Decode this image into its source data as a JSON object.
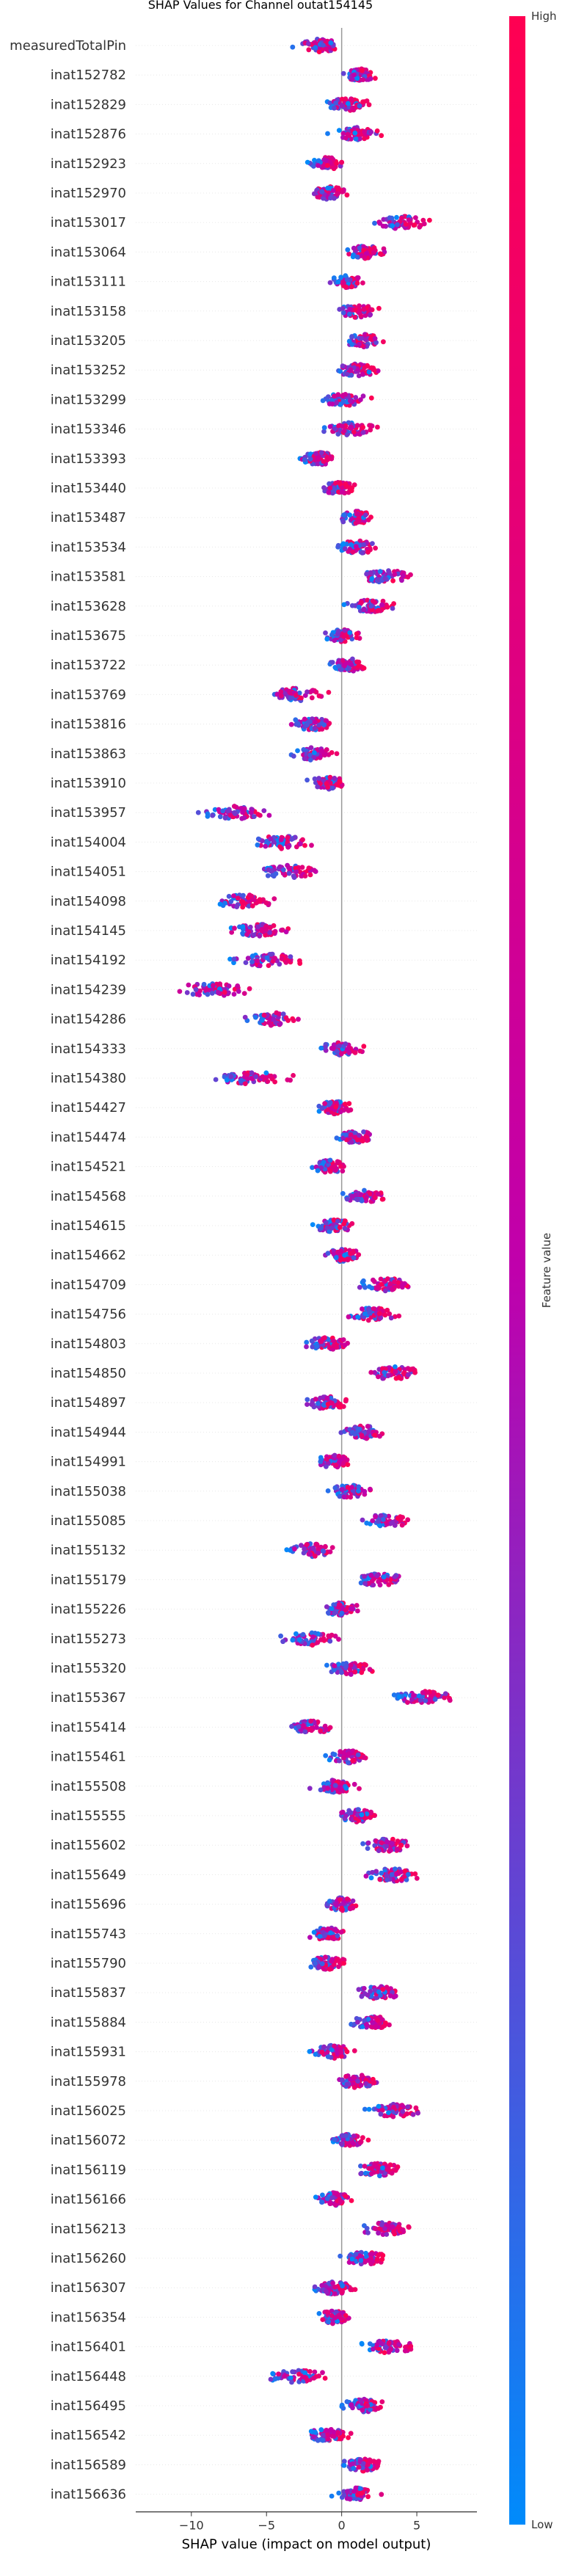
{
  "chart_data": {
    "type": "scatter",
    "title": "SHAP Values for Channel outat154145",
    "xlabel": "SHAP value (impact on model output)",
    "xlim": [
      -13.7,
      9.0
    ],
    "xticks": [
      -10,
      -5,
      0,
      5
    ],
    "colorbar": {
      "label": "Feature value",
      "high": "High",
      "low": "Low",
      "high_color": "#ff0052",
      "low_color": "#008bfb"
    },
    "features": [
      {
        "name": "measuredTotalPin",
        "center": -1.5,
        "spread": 2.2,
        "low_side": "left"
      },
      {
        "name": "inat152782",
        "center": 1.2,
        "spread": 1.5,
        "low_side": "left"
      },
      {
        "name": "inat152829",
        "center": 0.4,
        "spread": 2.0,
        "low_side": "left"
      },
      {
        "name": "inat152876",
        "center": 1.0,
        "spread": 2.2,
        "low_side": "left"
      },
      {
        "name": "inat152923",
        "center": -1.0,
        "spread": 1.6,
        "low_side": "left"
      },
      {
        "name": "inat152970",
        "center": -0.8,
        "spread": 1.8,
        "low_side": "left"
      },
      {
        "name": "inat153017",
        "center": 4.0,
        "spread": 2.6,
        "low_side": "left"
      },
      {
        "name": "inat153064",
        "center": 1.5,
        "spread": 2.0,
        "low_side": "left"
      },
      {
        "name": "inat153111",
        "center": 0.2,
        "spread": 1.6,
        "low_side": "left"
      },
      {
        "name": "inat153158",
        "center": 1.0,
        "spread": 1.8,
        "low_side": "left"
      },
      {
        "name": "inat153205",
        "center": 1.5,
        "spread": 1.8,
        "low_side": "left"
      },
      {
        "name": "inat153252",
        "center": 1.0,
        "spread": 2.0,
        "low_side": "left"
      },
      {
        "name": "inat153299",
        "center": 0.2,
        "spread": 2.0,
        "low_side": "left"
      },
      {
        "name": "inat153346",
        "center": 0.5,
        "spread": 2.2,
        "low_side": "left"
      },
      {
        "name": "inat153393",
        "center": -1.5,
        "spread": 1.8,
        "low_side": "left"
      },
      {
        "name": "inat153440",
        "center": -0.2,
        "spread": 1.6,
        "low_side": "left"
      },
      {
        "name": "inat153487",
        "center": 1.0,
        "spread": 1.8,
        "low_side": "left"
      },
      {
        "name": "inat153534",
        "center": 1.0,
        "spread": 2.2,
        "low_side": "left"
      },
      {
        "name": "inat153581",
        "center": 3.0,
        "spread": 2.4,
        "low_side": "left"
      },
      {
        "name": "inat153628",
        "center": 2.0,
        "spread": 2.2,
        "low_side": "left"
      },
      {
        "name": "inat153675",
        "center": 0.0,
        "spread": 1.6,
        "low_side": "left"
      },
      {
        "name": "inat153722",
        "center": 0.5,
        "spread": 1.8,
        "low_side": "left"
      },
      {
        "name": "inat153769",
        "center": -3.0,
        "spread": 2.4,
        "low_side": "left"
      },
      {
        "name": "inat153816",
        "center": -2.0,
        "spread": 2.2,
        "low_side": "left"
      },
      {
        "name": "inat153863",
        "center": -2.0,
        "spread": 1.8,
        "low_side": "left"
      },
      {
        "name": "inat153910",
        "center": -1.0,
        "spread": 1.8,
        "low_side": "left"
      },
      {
        "name": "inat153957",
        "center": -7.0,
        "spread": 3.3,
        "low_side": "left"
      },
      {
        "name": "inat154004",
        "center": -4.0,
        "spread": 2.8,
        "low_side": "left"
      },
      {
        "name": "inat154051",
        "center": -3.5,
        "spread": 2.8,
        "low_side": "left"
      },
      {
        "name": "inat154098",
        "center": -6.5,
        "spread": 3.6,
        "low_side": "left"
      },
      {
        "name": "inat154145",
        "center": -5.5,
        "spread": 3.0,
        "low_side": "left"
      },
      {
        "name": "inat154192",
        "center": -5.0,
        "spread": 3.2,
        "low_side": "left"
      },
      {
        "name": "inat154239",
        "center": -8.5,
        "spread": 4.2,
        "low_side": "left"
      },
      {
        "name": "inat154286",
        "center": -4.5,
        "spread": 2.6,
        "low_side": "left"
      },
      {
        "name": "inat154333",
        "center": 0.0,
        "spread": 2.0,
        "low_side": "left"
      },
      {
        "name": "inat154380",
        "center": -6.0,
        "spread": 3.2,
        "low_side": "left"
      },
      {
        "name": "inat154427",
        "center": -0.5,
        "spread": 1.8,
        "low_side": "left"
      },
      {
        "name": "inat154474",
        "center": 1.0,
        "spread": 1.8,
        "low_side": "left"
      },
      {
        "name": "inat154521",
        "center": -0.8,
        "spread": 1.8,
        "low_side": "left"
      },
      {
        "name": "inat154568",
        "center": 1.5,
        "spread": 2.0,
        "low_side": "left"
      },
      {
        "name": "inat154615",
        "center": -0.5,
        "spread": 1.8,
        "low_side": "left"
      },
      {
        "name": "inat154662",
        "center": 0.0,
        "spread": 1.8,
        "low_side": "left"
      },
      {
        "name": "inat154709",
        "center": 3.0,
        "spread": 2.6,
        "low_side": "left"
      },
      {
        "name": "inat154756",
        "center": 2.0,
        "spread": 2.2,
        "low_side": "left"
      },
      {
        "name": "inat154803",
        "center": -1.0,
        "spread": 2.0,
        "low_side": "left"
      },
      {
        "name": "inat154850",
        "center": 3.5,
        "spread": 2.6,
        "low_side": "left"
      },
      {
        "name": "inat154897",
        "center": -1.0,
        "spread": 2.0,
        "low_side": "left"
      },
      {
        "name": "inat154944",
        "center": 1.5,
        "spread": 2.0,
        "low_side": "left"
      },
      {
        "name": "inat154991",
        "center": -0.5,
        "spread": 2.0,
        "low_side": "left"
      },
      {
        "name": "inat155038",
        "center": 0.5,
        "spread": 2.0,
        "low_side": "left"
      },
      {
        "name": "inat155085",
        "center": 3.0,
        "spread": 2.2,
        "low_side": "left"
      },
      {
        "name": "inat155132",
        "center": -2.0,
        "spread": 2.2,
        "low_side": "left"
      },
      {
        "name": "inat155179",
        "center": 2.5,
        "spread": 2.2,
        "low_side": "left"
      },
      {
        "name": "inat155226",
        "center": 0.0,
        "spread": 1.8,
        "low_side": "left"
      },
      {
        "name": "inat155273",
        "center": -2.0,
        "spread": 2.6,
        "low_side": "left"
      },
      {
        "name": "inat155320",
        "center": 0.5,
        "spread": 2.2,
        "low_side": "left"
      },
      {
        "name": "inat155367",
        "center": 5.5,
        "spread": 2.8,
        "low_side": "left"
      },
      {
        "name": "inat155414",
        "center": -2.0,
        "spread": 2.2,
        "low_side": "left"
      },
      {
        "name": "inat155461",
        "center": 0.5,
        "spread": 1.8,
        "low_side": "left"
      },
      {
        "name": "inat155508",
        "center": -0.5,
        "spread": 2.0,
        "low_side": "left"
      },
      {
        "name": "inat155555",
        "center": 1.0,
        "spread": 1.8,
        "low_side": "left"
      },
      {
        "name": "inat155602",
        "center": 3.0,
        "spread": 2.4,
        "low_side": "left"
      },
      {
        "name": "inat155649",
        "center": 3.5,
        "spread": 2.8,
        "low_side": "left"
      },
      {
        "name": "inat155696",
        "center": 0.0,
        "spread": 1.8,
        "low_side": "left"
      },
      {
        "name": "inat155743",
        "center": -1.0,
        "spread": 1.8,
        "low_side": "left"
      },
      {
        "name": "inat155790",
        "center": -1.0,
        "spread": 1.8,
        "low_side": "left"
      },
      {
        "name": "inat155837",
        "center": 2.5,
        "spread": 2.2,
        "low_side": "left"
      },
      {
        "name": "inat155884",
        "center": 2.0,
        "spread": 2.2,
        "low_side": "left"
      },
      {
        "name": "inat155931",
        "center": -0.5,
        "spread": 2.2,
        "low_side": "left"
      },
      {
        "name": "inat155978",
        "center": 1.0,
        "spread": 2.2,
        "low_side": "left"
      },
      {
        "name": "inat156025",
        "center": 3.5,
        "spread": 2.4,
        "low_side": "left"
      },
      {
        "name": "inat156072",
        "center": 0.5,
        "spread": 1.8,
        "low_side": "left"
      },
      {
        "name": "inat156119",
        "center": 2.5,
        "spread": 2.2,
        "low_side": "left"
      },
      {
        "name": "inat156166",
        "center": -0.5,
        "spread": 1.8,
        "low_side": "left"
      },
      {
        "name": "inat156213",
        "center": 3.0,
        "spread": 2.2,
        "low_side": "left"
      },
      {
        "name": "inat156260",
        "center": 1.5,
        "spread": 2.0,
        "low_side": "left"
      },
      {
        "name": "inat156307",
        "center": -0.5,
        "spread": 2.0,
        "low_side": "left"
      },
      {
        "name": "inat156354",
        "center": -0.5,
        "spread": 1.8,
        "low_side": "left"
      },
      {
        "name": "inat156401",
        "center": 3.0,
        "spread": 2.4,
        "low_side": "left"
      },
      {
        "name": "inat156448",
        "center": -3.0,
        "spread": 2.8,
        "low_side": "left"
      },
      {
        "name": "inat156495",
        "center": 1.5,
        "spread": 2.2,
        "low_side": "left"
      },
      {
        "name": "inat156542",
        "center": -1.0,
        "spread": 2.0,
        "low_side": "left"
      },
      {
        "name": "inat156589",
        "center": 1.5,
        "spread": 2.0,
        "low_side": "left"
      },
      {
        "name": "inat156636",
        "center": 1.0,
        "spread": 2.0,
        "low_side": "left"
      }
    ]
  }
}
